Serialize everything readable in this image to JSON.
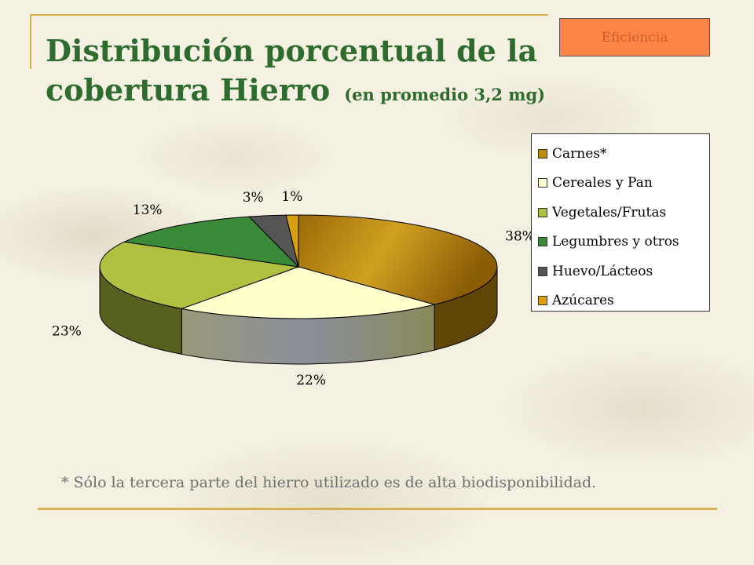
{
  "badge": {
    "label": "Eficiencia"
  },
  "title": {
    "line1": "Distribución porcentual de la",
    "line2": "cobertura Hierro",
    "subtitle": "(en promedio 3,2 mg)"
  },
  "footnote": "* Sólo la tercera parte del hierro utilizado es de alta biodisponibilidad.",
  "chart_data": {
    "type": "pie",
    "title": "",
    "legend_position": "right",
    "slices": [
      {
        "label": "Carnes*",
        "value": 38,
        "value_label": "38%",
        "color": "#c08a0e"
      },
      {
        "label": "Cereales y Pan",
        "value": 22,
        "value_label": "22%",
        "color": "#ffffcc"
      },
      {
        "label": "Vegetales/Frutas",
        "value": 23,
        "value_label": "23%",
        "color": "#b0c040"
      },
      {
        "label": "Legumbres y otros",
        "value": 13,
        "value_label": "13%",
        "color": "#3a8a3a"
      },
      {
        "label": "Huevo/Lácteos",
        "value": 3,
        "value_label": "3%",
        "color": "#555555"
      },
      {
        "label": "Azúcares",
        "value": 1,
        "value_label": "1%",
        "color": "#d8a010"
      }
    ]
  }
}
